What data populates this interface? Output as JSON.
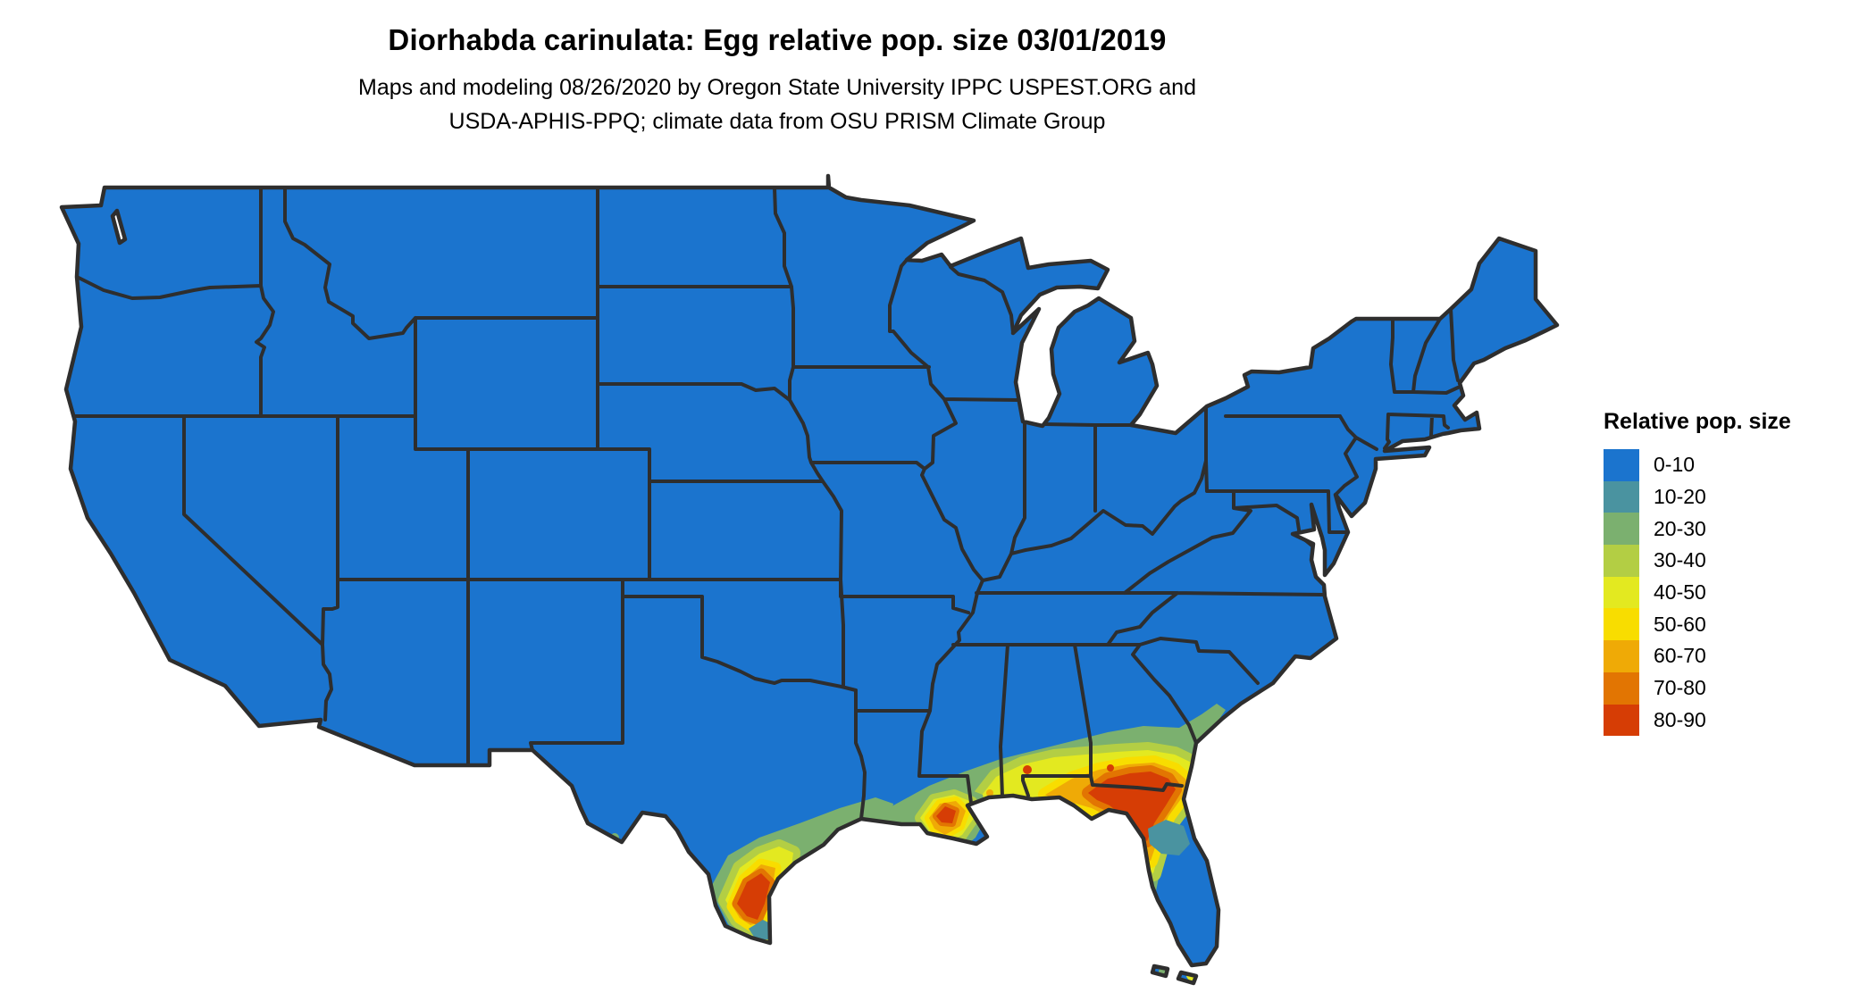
{
  "title": "Diorhabda carinulata: Egg relative pop. size 03/01/2019",
  "subtitle": {
    "line1": "Maps and modeling 08/26/2020 by Oregon State University IPPC USPEST.ORG and",
    "line2": "USDA-APHIS-PPQ; climate data from OSU PRISM Climate Group"
  },
  "legend": {
    "title": "Relative pop. size",
    "classes": [
      {
        "label": "0-10",
        "color": "#1B74CE"
      },
      {
        "label": "10-20",
        "color": "#4A93A0"
      },
      {
        "label": "20-30",
        "color": "#7BB06F"
      },
      {
        "label": "30-40",
        "color": "#B3CE44"
      },
      {
        "label": "40-50",
        "color": "#E3E920"
      },
      {
        "label": "50-60",
        "color": "#F8DD00"
      },
      {
        "label": "60-70",
        "color": "#EFAA06"
      },
      {
        "label": "70-80",
        "color": "#E27502"
      },
      {
        "label": "80-90",
        "color": "#D63D05"
      }
    ]
  },
  "map": {
    "type": "choropleth-raster",
    "region": "Contiguous United States with state borders",
    "base_class": "0-10",
    "border_color": "#2E2E2E",
    "background_color": "#FFFFFF",
    "hotspots": [
      {
        "name": "south-texas-rio-grande-valley",
        "classes": "20-30 up to 80-90, 10-20 pocket at southern tip"
      },
      {
        "name": "texas-louisiana-gulf-coastal-band",
        "classes": "20-30"
      },
      {
        "name": "louisiana-mississippi-delta",
        "classes": "20-30 up to 80-90"
      },
      {
        "name": "florida-panhandle-south-georgia",
        "classes": "20-30 up to 80-90, 10-20 pocket in north-central Florida"
      },
      {
        "name": "florida-keys-specks",
        "classes": "20-30 / 40-50"
      }
    ]
  }
}
